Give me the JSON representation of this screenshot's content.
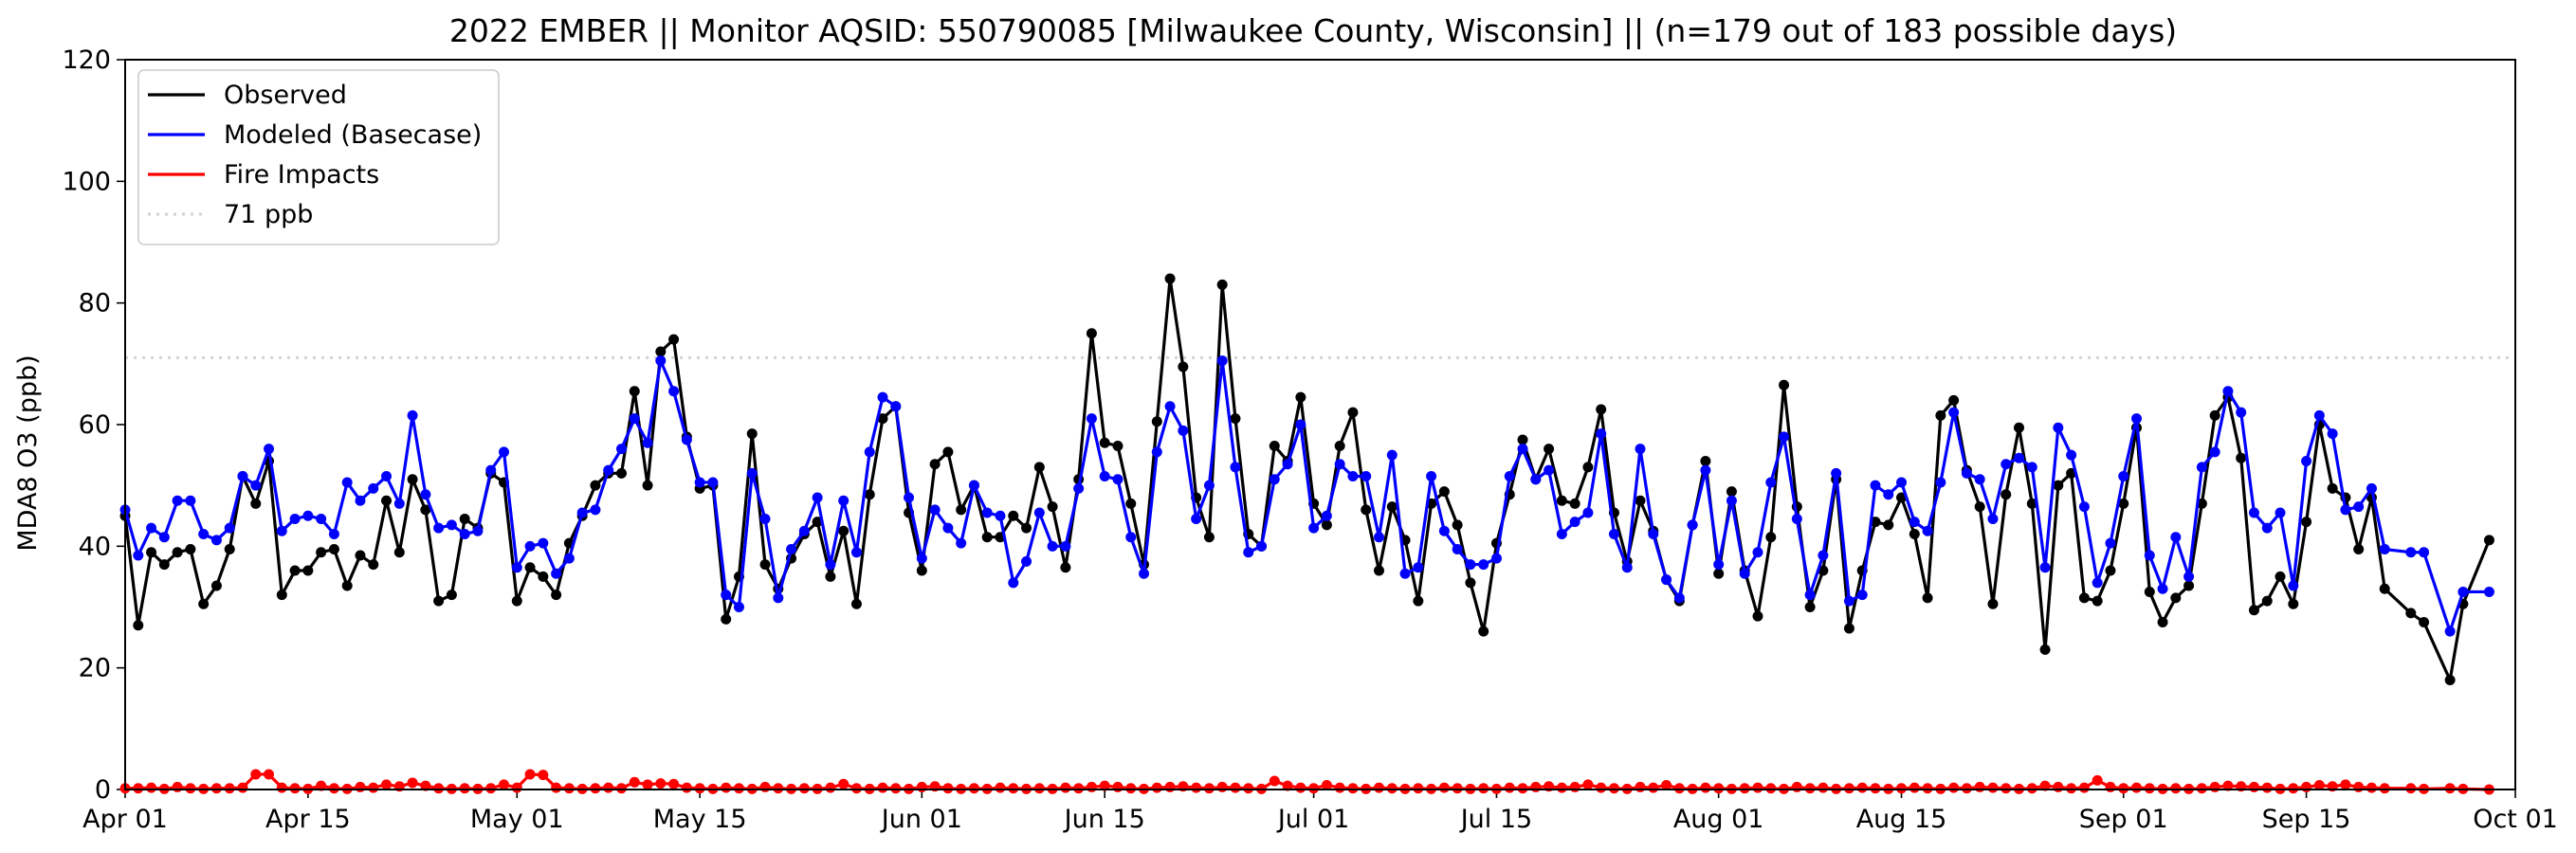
{
  "chart_data": {
    "type": "line",
    "title": "2022 EMBER || Monitor AQSID: 550790085 [Milwaukee County, Wisconsin] || (n=179 out of 183 possible days)",
    "xlabel": "",
    "ylabel": "MDA8 O3 (ppb)",
    "ylim": [
      0,
      120
    ],
    "yticks": [
      0,
      20,
      40,
      60,
      80,
      100,
      120
    ],
    "x_range": [
      "2022-04-01",
      "2022-10-01"
    ],
    "xticks": [
      {
        "date": "2022-04-01",
        "label": "Apr 01"
      },
      {
        "date": "2022-04-15",
        "label": "Apr 15"
      },
      {
        "date": "2022-05-01",
        "label": "May 01"
      },
      {
        "date": "2022-05-15",
        "label": "May 15"
      },
      {
        "date": "2022-06-01",
        "label": "Jun 01"
      },
      {
        "date": "2022-06-15",
        "label": "Jun 15"
      },
      {
        "date": "2022-07-01",
        "label": "Jul 01"
      },
      {
        "date": "2022-07-15",
        "label": "Jul 15"
      },
      {
        "date": "2022-08-01",
        "label": "Aug 01"
      },
      {
        "date": "2022-08-15",
        "label": "Aug 15"
      },
      {
        "date": "2022-09-01",
        "label": "Sep 01"
      },
      {
        "date": "2022-09-15",
        "label": "Sep 15"
      },
      {
        "date": "2022-10-01",
        "label": "Oct 01"
      }
    ],
    "grid": false,
    "legend_position": "top-left",
    "reference_line": {
      "name": "71 ppb",
      "value": 71,
      "color": "#d3d3d3"
    },
    "series": [
      {
        "name": "Observed",
        "color": "#000000",
        "start_date": "2022-04-01",
        "values": [
          45,
          27,
          39,
          37,
          39,
          39.5,
          30.5,
          33.5,
          39.5,
          51.5,
          47,
          54,
          32,
          36,
          36,
          39,
          39.5,
          33.5,
          38.5,
          37,
          47.5,
          39,
          51,
          46,
          31,
          32,
          44.5,
          43,
          52,
          50.5,
          31,
          36.5,
          35,
          32,
          40.5,
          45,
          50,
          52,
          52,
          65.5,
          50,
          72,
          74,
          58,
          49.5,
          50,
          28,
          35,
          58.5,
          37,
          33,
          38,
          42,
          44,
          35,
          42.5,
          30.5,
          48.5,
          61,
          63,
          45.5,
          36,
          53.5,
          55.5,
          46,
          50,
          41.5,
          41.5,
          45,
          43,
          53,
          46.5,
          36.5,
          51,
          75,
          57,
          56.5,
          47,
          37,
          60.5,
          84,
          69.5,
          48,
          41.5,
          83,
          61,
          42,
          40,
          56.5,
          54,
          64.5,
          47,
          43.5,
          56.5,
          62,
          46,
          36,
          46.5,
          41,
          31,
          47,
          49,
          43.5,
          34,
          26,
          40.5,
          48.5,
          57.5,
          51,
          56,
          47.5,
          47,
          53,
          62.5,
          45.5,
          37.5,
          47.5,
          42.5,
          34.5,
          31,
          43.5,
          54,
          35.5,
          49,
          36,
          28.5,
          41.5,
          66.5,
          46.5,
          30,
          36,
          51,
          26.5,
          36,
          44,
          43.5,
          48,
          42,
          31.5,
          61.5,
          64,
          52.5,
          46.5,
          30.5,
          48.5,
          59.5,
          47,
          23,
          50,
          52,
          31.5,
          31,
          36,
          47,
          59.5,
          32.5,
          27.5,
          31.5,
          33.5,
          47,
          61.5,
          64.5,
          54.5,
          29.5,
          31,
          35,
          30.5,
          44,
          60,
          49.5,
          48,
          39.5,
          48,
          33,
          null,
          29,
          27.5,
          null,
          18,
          30.5,
          null,
          41
        ]
      },
      {
        "name": "Modeled (Basecase)",
        "color": "#0000ff",
        "start_date": "2022-04-01",
        "values": [
          46,
          38.5,
          43,
          41.5,
          47.5,
          47.5,
          42,
          41,
          43,
          51.5,
          50,
          56,
          42.5,
          44.5,
          45,
          44.5,
          42,
          50.5,
          47.5,
          49.5,
          51.5,
          47,
          61.5,
          48.5,
          43,
          43.5,
          42,
          42.5,
          52.5,
          55.5,
          36.5,
          40,
          40.5,
          35.5,
          38,
          45.5,
          46,
          52.5,
          56,
          61,
          57,
          70.5,
          65.5,
          57.5,
          50.5,
          50.5,
          32,
          30,
          52,
          44.5,
          31.5,
          39.5,
          42.5,
          48,
          37,
          47.5,
          39,
          55.5,
          64.5,
          63,
          48,
          38,
          46,
          43,
          40.5,
          50,
          45.5,
          45,
          34,
          37.5,
          45.5,
          40,
          40,
          49.5,
          61,
          51.5,
          51,
          41.5,
          35.5,
          55.5,
          63,
          59,
          44.5,
          50,
          70.5,
          53,
          39,
          40,
          51,
          53.5,
          60,
          43,
          45,
          53.5,
          51.5,
          51.5,
          41.5,
          55,
          35.5,
          36.5,
          51.5,
          42.5,
          39.5,
          37,
          37,
          38,
          51.5,
          56,
          51,
          52.5,
          42,
          44,
          45.5,
          58.5,
          42,
          36.5,
          56,
          42,
          34.5,
          31.5,
          43.5,
          52.5,
          37,
          47.5,
          35.5,
          39,
          50.5,
          58,
          44.5,
          32,
          38.5,
          52,
          31,
          32,
          50,
          48.5,
          50.5,
          44,
          42.5,
          50.5,
          62,
          52,
          51,
          44.5,
          53.5,
          54.5,
          53,
          36.5,
          59.5,
          55,
          46.5,
          34,
          40.5,
          51.5,
          61,
          38.5,
          33,
          41.5,
          35,
          53,
          55.5,
          65.5,
          62,
          45.5,
          43,
          45.5,
          33.5,
          54,
          61.5,
          58.5,
          46,
          46.5,
          49.5,
          39.5,
          null,
          39,
          39,
          null,
          26,
          32.5,
          null,
          32.5
        ]
      },
      {
        "name": "Fire Impacts",
        "color": "#ff0000",
        "start_date": "2022-04-01",
        "values": [
          0.2,
          0.2,
          0.3,
          0.1,
          0.4,
          0.2,
          0.1,
          0.2,
          0.2,
          0.3,
          2.5,
          2.5,
          0.3,
          0.2,
          0.1,
          0.6,
          0.2,
          0.1,
          0.4,
          0.3,
          0.8,
          0.5,
          1.1,
          0.6,
          0.2,
          0.1,
          0.2,
          0.1,
          0.2,
          0.8,
          0.3,
          2.5,
          2.4,
          0.3,
          0.2,
          0.1,
          0.2,
          0.3,
          0.2,
          1.2,
          0.8,
          1,
          0.9,
          0.3,
          0.2,
          0.1,
          0.3,
          0.2,
          0.1,
          0.4,
          0.2,
          0.1,
          0.2,
          0.1,
          0.3,
          0.9,
          0.2,
          0.1,
          0.3,
          0.2,
          0.1,
          0.4,
          0.5,
          0.2,
          0.1,
          0.2,
          0.1,
          0.3,
          0.2,
          0.1,
          0.2,
          0.1,
          0.3,
          0.2,
          0.4,
          0.6,
          0.4,
          0.2,
          0.1,
          0.3,
          0.4,
          0.5,
          0.3,
          0.2,
          0.4,
          0.3,
          0.2,
          0.1,
          1.4,
          0.6,
          0.3,
          0.2,
          0.7,
          0.3,
          0.2,
          0.1,
          0.3,
          0.2,
          0.1,
          0.2,
          0.1,
          0.3,
          0.2,
          0.1,
          0.2,
          0.1,
          0.3,
          0.2,
          0.4,
          0.5,
          0.3,
          0.4,
          0.8,
          0.3,
          0.2,
          0.1,
          0.4,
          0.3,
          0.7,
          0.2,
          0.1,
          0.3,
          0.2,
          0.1,
          0.2,
          0.3,
          0.2,
          0.1,
          0.4,
          0.2,
          0.3,
          0.1,
          0.2,
          0.3,
          0.2,
          0.1,
          0.2,
          0.3,
          0.2,
          0.1,
          0.3,
          0.2,
          0.4,
          0.3,
          0.2,
          0.1,
          0.2,
          0.6,
          0.4,
          0.2,
          0.3,
          1.5,
          0.4,
          0.2,
          0.3,
          0.2,
          0.1,
          0.2,
          0.1,
          0.2,
          0.4,
          0.6,
          0.5,
          0.4,
          0.3,
          0.1,
          0.2,
          0.4,
          0.7,
          0.5,
          0.8,
          0.4,
          0.3,
          0.2,
          null,
          0.2,
          0.1,
          null,
          0.2,
          0.1,
          null,
          0
        ]
      }
    ]
  }
}
